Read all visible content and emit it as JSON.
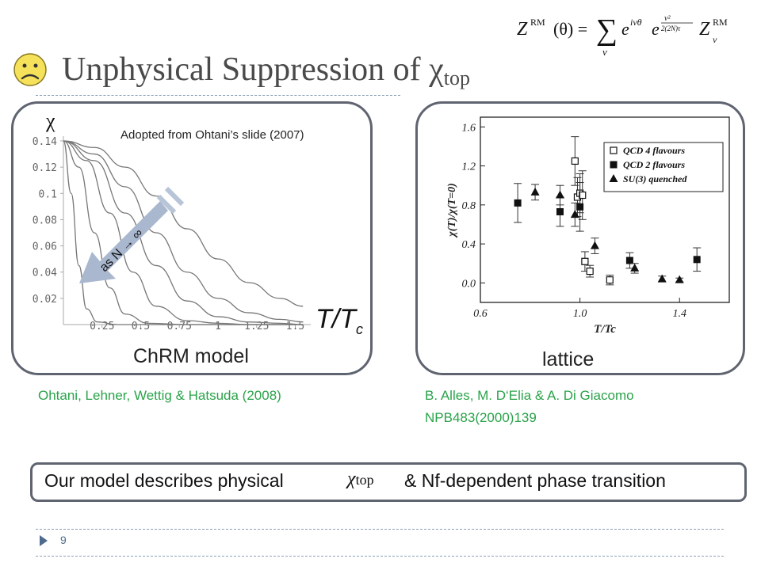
{
  "title": {
    "main": "Unphysical Suppression of ",
    "chi": "χ",
    "sub": "top"
  },
  "icons": {
    "mood": "sad-face-icon"
  },
  "formula": {
    "lhs": "Z",
    "lhs_sup": "RM",
    "arg": "(θ) =",
    "sum": "∑",
    "sum_idx": "ν",
    "term1": "e",
    "term1_sup": "iνθ",
    "term2": "e",
    "term2_sup_num": "ν²",
    "term2_sup_den": "2(2N)τ",
    "term3": "Z",
    "term3_sup": "RM",
    "term3_sub": "ν"
  },
  "left_panel": {
    "caption": "ChRM model",
    "note": "Adopted from Ohtani’s slide (2007)",
    "ylabel": "χ",
    "xlabel_main": "T/T",
    "xlabel_sub": "c",
    "arrow_label": "as N → ∞",
    "reference": "Ohtani, Lehner, Wettig & Hatsuda (2008)"
  },
  "right_panel": {
    "caption": "lattice",
    "reference_line1": "B. Alles, M. D‘Elia & A. Di Giacomo",
    "reference_line2": "NPB483(2000)139"
  },
  "conclusion": {
    "text_before": "Our model describes physical ",
    "chi": "χ",
    "chi_sub": "top",
    "text_after": " & Nf-dependent phase transition"
  },
  "page_number": "9",
  "colors": {
    "accent_green": "#2aa34a",
    "panel_border": "#5f6470",
    "footer_blue": "#4e6a8e",
    "smiley_yellow": "#f6e15a"
  },
  "chart_data": [
    {
      "type": "line",
      "title": "",
      "xlabel": "T/Tc",
      "ylabel": "χ",
      "xlim": [
        0,
        1.6
      ],
      "ylim": [
        0,
        0.14
      ],
      "x_ticks": [
        "0.25",
        "0.5",
        "0.75",
        "1",
        "1.25",
        "1.5"
      ],
      "y_ticks": [
        "0.02",
        "0.04",
        "0.06",
        "0.08",
        "0.1",
        "0.12",
        "0.14"
      ],
      "series": [
        {
          "values": [
            [
              0,
              0.14
            ],
            [
              0.2,
              0.135
            ],
            [
              0.4,
              0.12
            ],
            [
              0.6,
              0.098
            ],
            [
              0.8,
              0.073
            ],
            [
              1.0,
              0.05
            ],
            [
              1.2,
              0.032
            ],
            [
              1.4,
              0.02
            ],
            [
              1.55,
              0.014
            ]
          ]
        },
        {
          "values": [
            [
              0,
              0.14
            ],
            [
              0.2,
              0.13
            ],
            [
              0.4,
              0.105
            ],
            [
              0.6,
              0.07
            ],
            [
              0.8,
              0.04
            ],
            [
              1.0,
              0.02
            ],
            [
              1.2,
              0.009
            ],
            [
              1.4,
              0.004
            ],
            [
              1.55,
              0.002
            ]
          ]
        },
        {
          "values": [
            [
              0,
              0.14
            ],
            [
              0.2,
              0.125
            ],
            [
              0.4,
              0.085
            ],
            [
              0.6,
              0.045
            ],
            [
              0.8,
              0.018
            ],
            [
              1.0,
              0.006
            ],
            [
              1.2,
              0.002
            ],
            [
              1.4,
              0.001
            ],
            [
              1.55,
              0
            ]
          ]
        },
        {
          "values": [
            [
              0,
              0.14
            ],
            [
              0.15,
              0.125
            ],
            [
              0.3,
              0.085
            ],
            [
              0.45,
              0.04
            ],
            [
              0.6,
              0.014
            ],
            [
              0.8,
              0.003
            ],
            [
              1.0,
              0.001
            ],
            [
              1.2,
              0
            ],
            [
              1.55,
              0
            ]
          ]
        },
        {
          "values": [
            [
              0,
              0.14
            ],
            [
              0.1,
              0.12
            ],
            [
              0.2,
              0.07
            ],
            [
              0.3,
              0.028
            ],
            [
              0.4,
              0.008
            ],
            [
              0.55,
              0.001
            ],
            [
              0.8,
              0
            ],
            [
              1.55,
              0
            ]
          ]
        },
        {
          "values": [
            [
              0,
              0.14
            ],
            [
              0.05,
              0.1
            ],
            [
              0.1,
              0.045
            ],
            [
              0.15,
              0.012
            ],
            [
              0.22,
              0.002
            ],
            [
              0.35,
              0
            ],
            [
              1.55,
              0
            ]
          ]
        }
      ]
    },
    {
      "type": "scatter",
      "title": "",
      "xlabel": "T/Tc",
      "ylabel": "χ(T)/χ(T=0)",
      "xlim": [
        0.6,
        1.6
      ],
      "ylim": [
        -0.2,
        1.7
      ],
      "x_ticks": [
        "0.6",
        "1.0",
        "1.4"
      ],
      "y_ticks": [
        "0.0",
        "0.4",
        "0.8",
        "1.2",
        "1.6"
      ],
      "legend": [
        "QCD 4 flavours",
        "QCD 2 flavours",
        "SU(3) quenched"
      ],
      "legend_position": "top-right",
      "series": [
        {
          "name": "QCD 4 flavours",
          "marker": "open-square",
          "points": [
            [
              0.98,
              1.25,
              0.25
            ],
            [
              0.99,
              0.88,
              0.2
            ],
            [
              1.0,
              0.92,
              0.2
            ],
            [
              1.01,
              0.9,
              0.25
            ],
            [
              1.02,
              0.22,
              0.1
            ],
            [
              1.04,
              0.12,
              0.06
            ],
            [
              1.12,
              0.03,
              0.05
            ]
          ]
        },
        {
          "name": "QCD 2 flavours",
          "marker": "filled-square",
          "points": [
            [
              0.75,
              0.82,
              0.2
            ],
            [
              0.92,
              0.73,
              0.15
            ],
            [
              1.0,
              0.78,
              0.25
            ],
            [
              1.2,
              0.23,
              0.08
            ],
            [
              1.47,
              0.24,
              0.12
            ]
          ]
        },
        {
          "name": "SU(3) quenched",
          "marker": "filled-triangle",
          "points": [
            [
              0.82,
              0.93,
              0.08
            ],
            [
              0.92,
              0.9,
              0.1
            ],
            [
              0.98,
              0.7,
              0.12
            ],
            [
              1.06,
              0.38,
              0.08
            ],
            [
              1.22,
              0.15,
              0.05
            ],
            [
              1.33,
              0.04,
              0.03
            ],
            [
              1.4,
              0.03,
              0.02
            ]
          ]
        }
      ]
    }
  ]
}
